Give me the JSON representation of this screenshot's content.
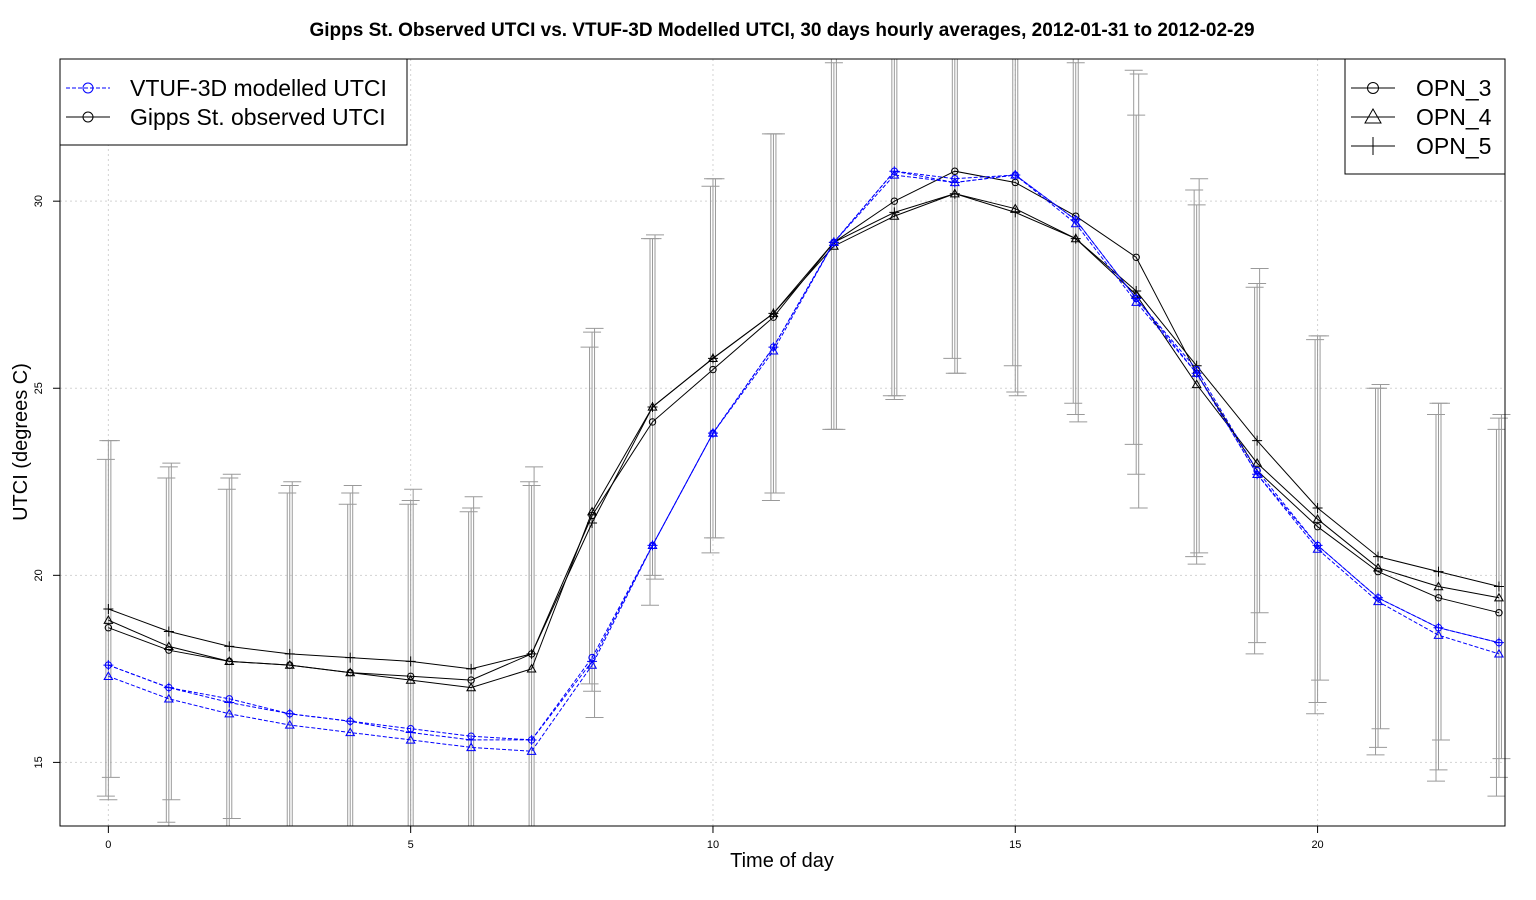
{
  "chart_data": {
    "type": "line",
    "title": "Gipps St. Observed UTCI vs. VTUF-3D Modelled UTCI, 30 days hourly averages, 2012-01-31 to 2012-02-29",
    "xlabel": "Time of day",
    "ylabel": "UTCI (degrees C)",
    "xlim": [
      -0.8,
      23.1
    ],
    "ylim": [
      13.3,
      33.8
    ],
    "xticks": [
      0,
      5,
      10,
      15,
      20
    ],
    "yticks": [
      15,
      20,
      25,
      30
    ],
    "grid": true,
    "x": [
      0,
      1,
      2,
      3,
      4,
      5,
      6,
      7,
      8,
      9,
      10,
      11,
      12,
      13,
      14,
      15,
      16,
      17,
      18,
      19,
      20,
      21,
      22,
      23
    ],
    "colors": {
      "modelled": "#0000ff",
      "observed": "#000000",
      "errorbar": "#9a9a9a",
      "grid": "#d3d3d3"
    },
    "legend_type": {
      "position": "top-left",
      "entries": [
        {
          "label": "VTUF-3D modelled UTCI",
          "color": "#0000ff",
          "dashed": true
        },
        {
          "label": "Gipps St. observed UTCI",
          "color": "#000000",
          "dashed": false
        }
      ]
    },
    "legend_site": {
      "position": "top-right",
      "entries": [
        {
          "label": "OPN_3",
          "marker": "circle"
        },
        {
          "label": "OPN_4",
          "marker": "triangle"
        },
        {
          "label": "OPN_5",
          "marker": "plus"
        }
      ]
    },
    "series": [
      {
        "site": "OPN_3",
        "type": "observed",
        "marker": "circle",
        "values": [
          18.6,
          18.0,
          17.7,
          17.6,
          17.4,
          17.3,
          17.2,
          17.9,
          21.6,
          24.1,
          25.5,
          26.9,
          28.9,
          30.0,
          30.8,
          30.5,
          29.6,
          28.5,
          25.4,
          22.8,
          21.3,
          20.1,
          19.4,
          19.0
        ],
        "sd": [
          4.5,
          4.6,
          4.6,
          4.6,
          4.5,
          4.6,
          4.5,
          4.6,
          4.5,
          4.9,
          4.9,
          4.9,
          5.0,
          5.2,
          5.0,
          4.9,
          5.0,
          5.0,
          4.9,
          4.9,
          5.0,
          4.9,
          4.9,
          4.9
        ]
      },
      {
        "site": "OPN_4",
        "type": "observed",
        "marker": "triangle",
        "values": [
          18.8,
          18.1,
          17.7,
          17.6,
          17.4,
          17.2,
          17.0,
          17.5,
          21.7,
          24.5,
          25.8,
          27.0,
          28.8,
          29.6,
          30.2,
          29.8,
          29.0,
          27.5,
          25.1,
          23.0,
          21.5,
          20.2,
          19.7,
          19.4
        ],
        "sd": [
          4.8,
          4.8,
          4.9,
          4.8,
          4.8,
          4.8,
          4.8,
          4.9,
          4.8,
          4.5,
          4.8,
          4.8,
          4.9,
          4.9,
          4.8,
          4.9,
          4.7,
          4.8,
          4.8,
          4.8,
          4.9,
          4.8,
          4.9,
          4.8
        ]
      },
      {
        "site": "OPN_5",
        "type": "observed",
        "marker": "plus",
        "values": [
          19.1,
          18.5,
          18.1,
          17.9,
          17.8,
          17.7,
          17.5,
          17.9,
          21.4,
          24.5,
          25.8,
          27.0,
          28.9,
          29.7,
          30.2,
          29.7,
          29.0,
          27.6,
          25.6,
          23.6,
          21.8,
          20.5,
          20.1,
          19.7
        ],
        "sd": [
          4.5,
          4.5,
          4.6,
          4.6,
          4.6,
          4.6,
          4.6,
          5.0,
          5.2,
          4.6,
          4.8,
          4.8,
          5.0,
          4.9,
          4.8,
          4.9,
          4.9,
          5.8,
          5.0,
          4.6,
          4.6,
          4.6,
          4.5,
          4.6
        ]
      },
      {
        "site": "OPN_3",
        "type": "modelled",
        "marker": "circle",
        "values": [
          17.6,
          17.0,
          16.7,
          16.3,
          16.1,
          15.9,
          15.7,
          15.6,
          17.8,
          20.8,
          23.8,
          26.1,
          28.9,
          30.8,
          30.6,
          30.7,
          29.5,
          27.4,
          25.5,
          22.8,
          20.8,
          19.4,
          18.6,
          18.2
        ],
        "sd": []
      },
      {
        "site": "OPN_4",
        "type": "modelled",
        "marker": "triangle",
        "values": [
          17.3,
          16.7,
          16.3,
          16.0,
          15.8,
          15.6,
          15.4,
          15.3,
          17.6,
          20.8,
          23.8,
          26.0,
          28.9,
          30.7,
          30.5,
          30.7,
          29.4,
          27.3,
          25.4,
          22.7,
          20.7,
          19.3,
          18.4,
          17.9
        ],
        "sd": []
      },
      {
        "site": "OPN_5",
        "type": "modelled",
        "marker": "plus",
        "values": [
          17.6,
          17.0,
          16.6,
          16.3,
          16.1,
          15.8,
          15.6,
          15.6,
          17.7,
          20.8,
          23.8,
          26.1,
          28.9,
          30.8,
          30.5,
          30.7,
          29.5,
          27.4,
          25.4,
          22.7,
          20.8,
          19.4,
          18.6,
          18.2
        ],
        "sd": []
      }
    ]
  }
}
